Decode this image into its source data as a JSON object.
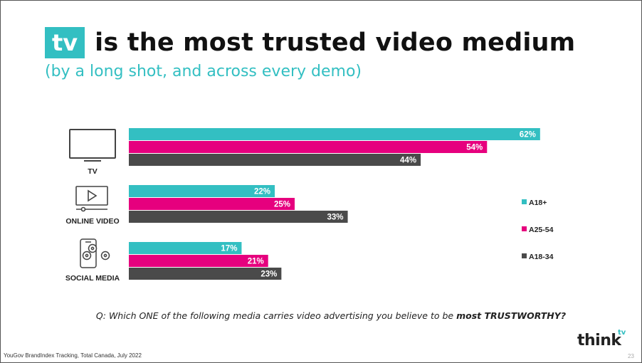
{
  "header": {
    "title_highlight": "tv",
    "title_rest": "is the most trusted video medium",
    "subtitle": "(by a long shot, and across every demo)"
  },
  "chart_data": {
    "type": "bar",
    "orientation": "horizontal",
    "categories": [
      "TV",
      "ONLINE VIDEO",
      "SOCIAL MEDIA"
    ],
    "series": [
      {
        "name": "A18+",
        "color": "#33bfc2",
        "values": [
          62,
          22,
          17
        ]
      },
      {
        "name": "A25-54",
        "color": "#e6007e",
        "values": [
          54,
          25,
          21
        ]
      },
      {
        "name": "A18-34",
        "color": "#4a4a4a",
        "values": [
          44,
          33,
          23
        ]
      }
    ],
    "value_suffix": "%",
    "legend_position": "right",
    "category_icons": [
      "tv-icon",
      "online-video-icon",
      "social-media-icon"
    ]
  },
  "question": {
    "prefix": "Q: Which ONE of the following media carries video advertising you believe to be ",
    "emphasis": "most TRUSTWORTHY?"
  },
  "footer": {
    "source": "YouGov BrandIndex Tracking, Total Canada, July 2022",
    "page_number": "23",
    "logo_text": "think",
    "logo_superscript": "tv"
  },
  "colors": {
    "accent": "#33bfc2",
    "magenta": "#e6007e",
    "dark": "#4a4a4a"
  }
}
